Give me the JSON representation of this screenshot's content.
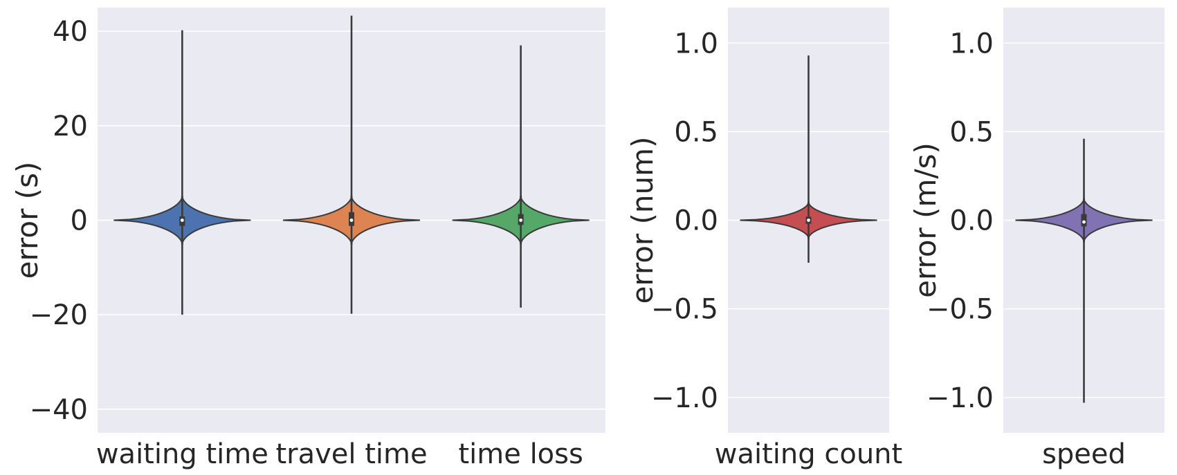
{
  "chart_data": [
    {
      "type": "violin",
      "ylabel": "error (s)",
      "ylim": [
        -45,
        45
      ],
      "yticks": [
        -40,
        -20,
        0,
        20,
        40
      ],
      "ytick_labels": [
        "−40",
        "−20",
        "0",
        "20",
        "40"
      ],
      "grid": true,
      "categories": [
        "waiting time",
        "travel time",
        "time loss"
      ],
      "series": [
        {
          "category": "waiting time",
          "color": "#4c72b0",
          "min": -20,
          "max": 40.2,
          "q1": -1.2,
          "median": 0,
          "q3": 0.8,
          "width_extent": [
            -5,
            5
          ],
          "bulb_extent": [
            -2,
            2
          ]
        },
        {
          "category": "travel time",
          "color": "#dd8452",
          "min": -19.8,
          "max": 43.3,
          "q1": -1.2,
          "median": 0,
          "q3": 1.7,
          "width_extent": [
            -5,
            5
          ],
          "bulb_extent": [
            -2,
            2
          ]
        },
        {
          "category": "time loss",
          "color": "#55a868",
          "min": -18.5,
          "max": 37,
          "q1": -1,
          "median": 0,
          "q3": 1.3,
          "width_extent": [
            -5,
            5
          ],
          "bulb_extent": [
            -2,
            2
          ]
        }
      ]
    },
    {
      "type": "violin",
      "ylabel": "error (num)",
      "ylim": [
        -1.2,
        1.2
      ],
      "yticks": [
        -1.0,
        -0.5,
        0.0,
        0.5,
        1.0
      ],
      "ytick_labels": [
        "−1.0",
        "−0.5",
        "0.0",
        "0.5",
        "1.0"
      ],
      "grid": true,
      "categories": [
        "waiting count"
      ],
      "series": [
        {
          "category": "waiting count",
          "color": "#c44e52",
          "min": -0.24,
          "max": 0.93,
          "q1": -0.02,
          "median": 0,
          "q3": 0.02,
          "width_extent": [
            -0.1,
            0.1
          ],
          "bulb_extent": [
            -0.04,
            0.04
          ]
        }
      ]
    },
    {
      "type": "violin",
      "ylabel": "error (m/s)",
      "ylim": [
        -1.2,
        1.2
      ],
      "yticks": [
        -1.0,
        -0.5,
        0.0,
        0.5,
        1.0
      ],
      "ytick_labels": [
        "−1.0",
        "−0.5",
        "0.0",
        "0.5",
        "1.0"
      ],
      "grid": true,
      "categories": [
        "speed"
      ],
      "series": [
        {
          "category": "speed",
          "color": "#8172b3",
          "min": -1.03,
          "max": 0.46,
          "q1": -0.035,
          "median": -0.01,
          "q3": 0.035,
          "width_extent": [
            -0.12,
            0.12
          ],
          "bulb_extent": [
            -0.05,
            0.05
          ]
        }
      ]
    }
  ]
}
